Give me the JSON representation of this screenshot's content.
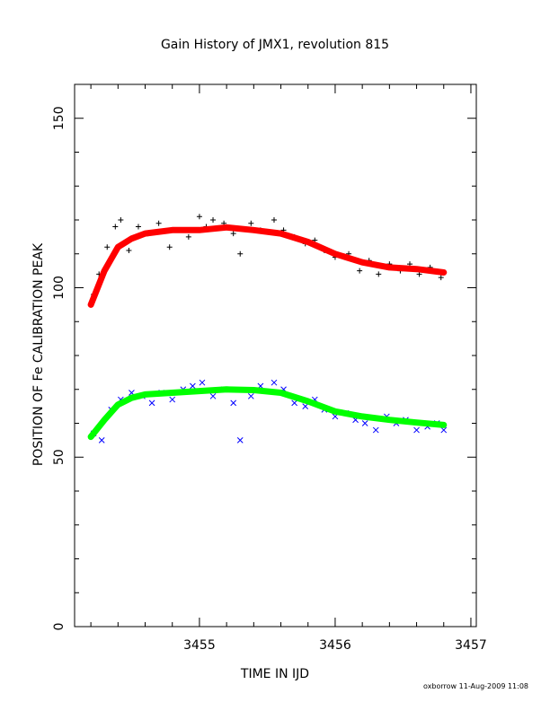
{
  "chart_data": {
    "type": "scatter",
    "title": "Gain History of JMX1, revolution 815",
    "xlabel": "TIME IN IJD",
    "ylabel": "POSITION OF Fe CALIBRATION PEAK",
    "xlim": [
      3454.08,
      3457.04
    ],
    "ylim": [
      0,
      160
    ],
    "x_ticks": [
      3455,
      3456,
      3457
    ],
    "y_ticks": [
      0,
      50,
      100,
      150
    ],
    "grid": false,
    "footer": "oxborrow 11-Aug-2009 11:08",
    "series": [
      {
        "marker": "plus",
        "color": "#000000",
        "fit_color": "#ff0000",
        "fit": [
          [
            3454.2,
            95
          ],
          [
            3454.3,
            105
          ],
          [
            3454.4,
            112
          ],
          [
            3454.5,
            114.5
          ],
          [
            3454.6,
            116
          ],
          [
            3454.8,
            117
          ],
          [
            3455.0,
            117
          ],
          [
            3455.2,
            117.8
          ],
          [
            3455.4,
            117
          ],
          [
            3455.6,
            116
          ],
          [
            3455.8,
            113.5
          ],
          [
            3456.0,
            110
          ],
          [
            3456.2,
            107.5
          ],
          [
            3456.4,
            106
          ],
          [
            3456.6,
            105.5
          ],
          [
            3456.8,
            104.5
          ]
        ],
        "scatter": [
          [
            3454.22,
            98
          ],
          [
            3454.26,
            104
          ],
          [
            3454.32,
            112
          ],
          [
            3454.38,
            118
          ],
          [
            3454.42,
            120
          ],
          [
            3454.48,
            111
          ],
          [
            3454.55,
            118
          ],
          [
            3454.62,
            116
          ],
          [
            3454.7,
            119
          ],
          [
            3454.78,
            112
          ],
          [
            3454.85,
            117
          ],
          [
            3454.92,
            115
          ],
          [
            3455.0,
            121
          ],
          [
            3455.05,
            118
          ],
          [
            3455.1,
            120
          ],
          [
            3455.18,
            119
          ],
          [
            3455.25,
            116
          ],
          [
            3455.3,
            110
          ],
          [
            3455.38,
            119
          ],
          [
            3455.45,
            117
          ],
          [
            3455.55,
            120
          ],
          [
            3455.62,
            117
          ],
          [
            3455.7,
            115
          ],
          [
            3455.78,
            113
          ],
          [
            3455.85,
            114
          ],
          [
            3455.92,
            111
          ],
          [
            3456.0,
            109
          ],
          [
            3456.1,
            110
          ],
          [
            3456.18,
            105
          ],
          [
            3456.25,
            108
          ],
          [
            3456.32,
            104
          ],
          [
            3456.4,
            107
          ],
          [
            3456.48,
            105
          ],
          [
            3456.55,
            107
          ],
          [
            3456.62,
            104
          ],
          [
            3456.7,
            106
          ],
          [
            3456.78,
            103
          ]
        ]
      },
      {
        "marker": "cross",
        "color": "#0000ff",
        "fit_color": "#00ff00",
        "fit": [
          [
            3454.2,
            56
          ],
          [
            3454.3,
            61
          ],
          [
            3454.4,
            65.5
          ],
          [
            3454.5,
            67.5
          ],
          [
            3454.6,
            68.5
          ],
          [
            3454.8,
            69
          ],
          [
            3455.0,
            69.5
          ],
          [
            3455.2,
            70
          ],
          [
            3455.4,
            69.8
          ],
          [
            3455.6,
            69
          ],
          [
            3455.8,
            66.5
          ],
          [
            3456.0,
            63.5
          ],
          [
            3456.2,
            62
          ],
          [
            3456.4,
            61
          ],
          [
            3456.6,
            60.2
          ],
          [
            3456.8,
            59.5
          ]
        ],
        "scatter": [
          [
            3454.22,
            57
          ],
          [
            3454.28,
            55
          ],
          [
            3454.35,
            64
          ],
          [
            3454.42,
            67
          ],
          [
            3454.5,
            69
          ],
          [
            3454.58,
            68
          ],
          [
            3454.65,
            66
          ],
          [
            3454.72,
            69
          ],
          [
            3454.8,
            67
          ],
          [
            3454.88,
            70
          ],
          [
            3454.95,
            71
          ],
          [
            3455.02,
            72
          ],
          [
            3455.1,
            68
          ],
          [
            3455.18,
            70
          ],
          [
            3455.25,
            66
          ],
          [
            3455.3,
            55
          ],
          [
            3455.38,
            68
          ],
          [
            3455.45,
            71
          ],
          [
            3455.55,
            72
          ],
          [
            3455.62,
            70
          ],
          [
            3455.7,
            66
          ],
          [
            3455.78,
            65
          ],
          [
            3455.85,
            67
          ],
          [
            3455.92,
            64
          ],
          [
            3456.0,
            62
          ],
          [
            3456.08,
            63
          ],
          [
            3456.15,
            61
          ],
          [
            3456.22,
            60
          ],
          [
            3456.3,
            58
          ],
          [
            3456.38,
            62
          ],
          [
            3456.45,
            60
          ],
          [
            3456.52,
            61
          ],
          [
            3456.6,
            58
          ],
          [
            3456.68,
            59
          ],
          [
            3456.75,
            60
          ],
          [
            3456.8,
            58
          ]
        ]
      }
    ]
  }
}
